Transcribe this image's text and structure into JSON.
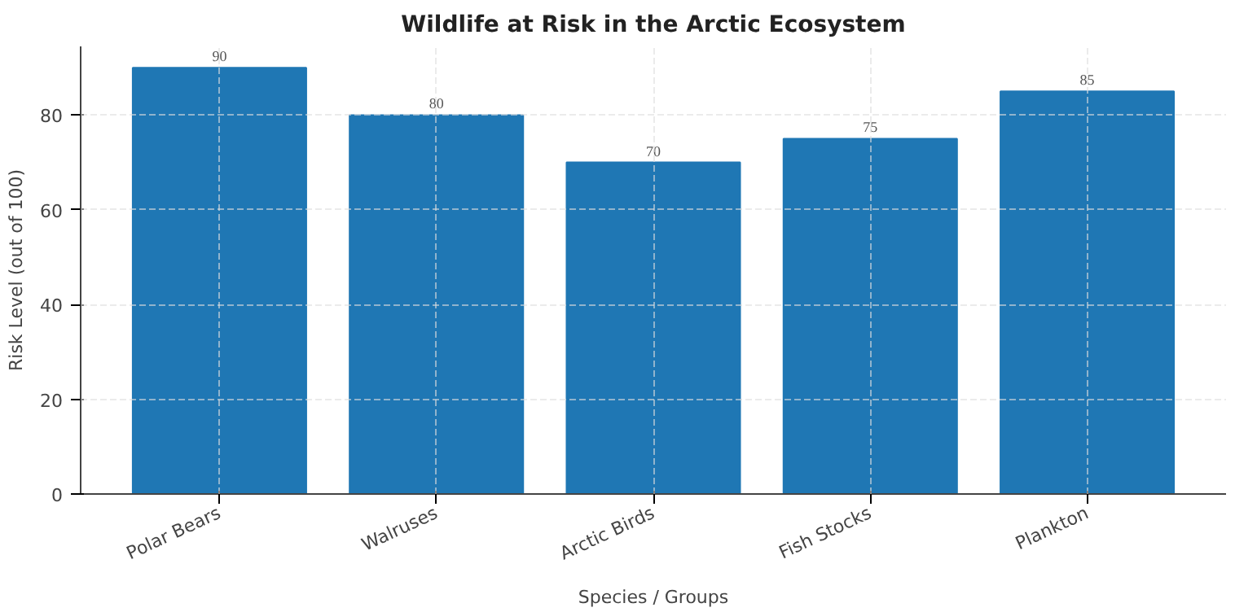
{
  "chart_data": {
    "type": "bar",
    "title": "Wildlife at Risk in the Arctic Ecosystem",
    "xlabel": "Species / Groups",
    "ylabel": "Risk Level (out of 100)",
    "categories": [
      "Polar Bears",
      "Walruses",
      "Arctic Birds",
      "Fish Stocks",
      "Plankton"
    ],
    "values": [
      90,
      80,
      70,
      75,
      85
    ],
    "color": "#1f77b4",
    "ylim": [
      0,
      94.5
    ],
    "yticks": [
      0,
      20,
      40,
      60,
      80
    ],
    "grid": true,
    "data_labels": true
  }
}
